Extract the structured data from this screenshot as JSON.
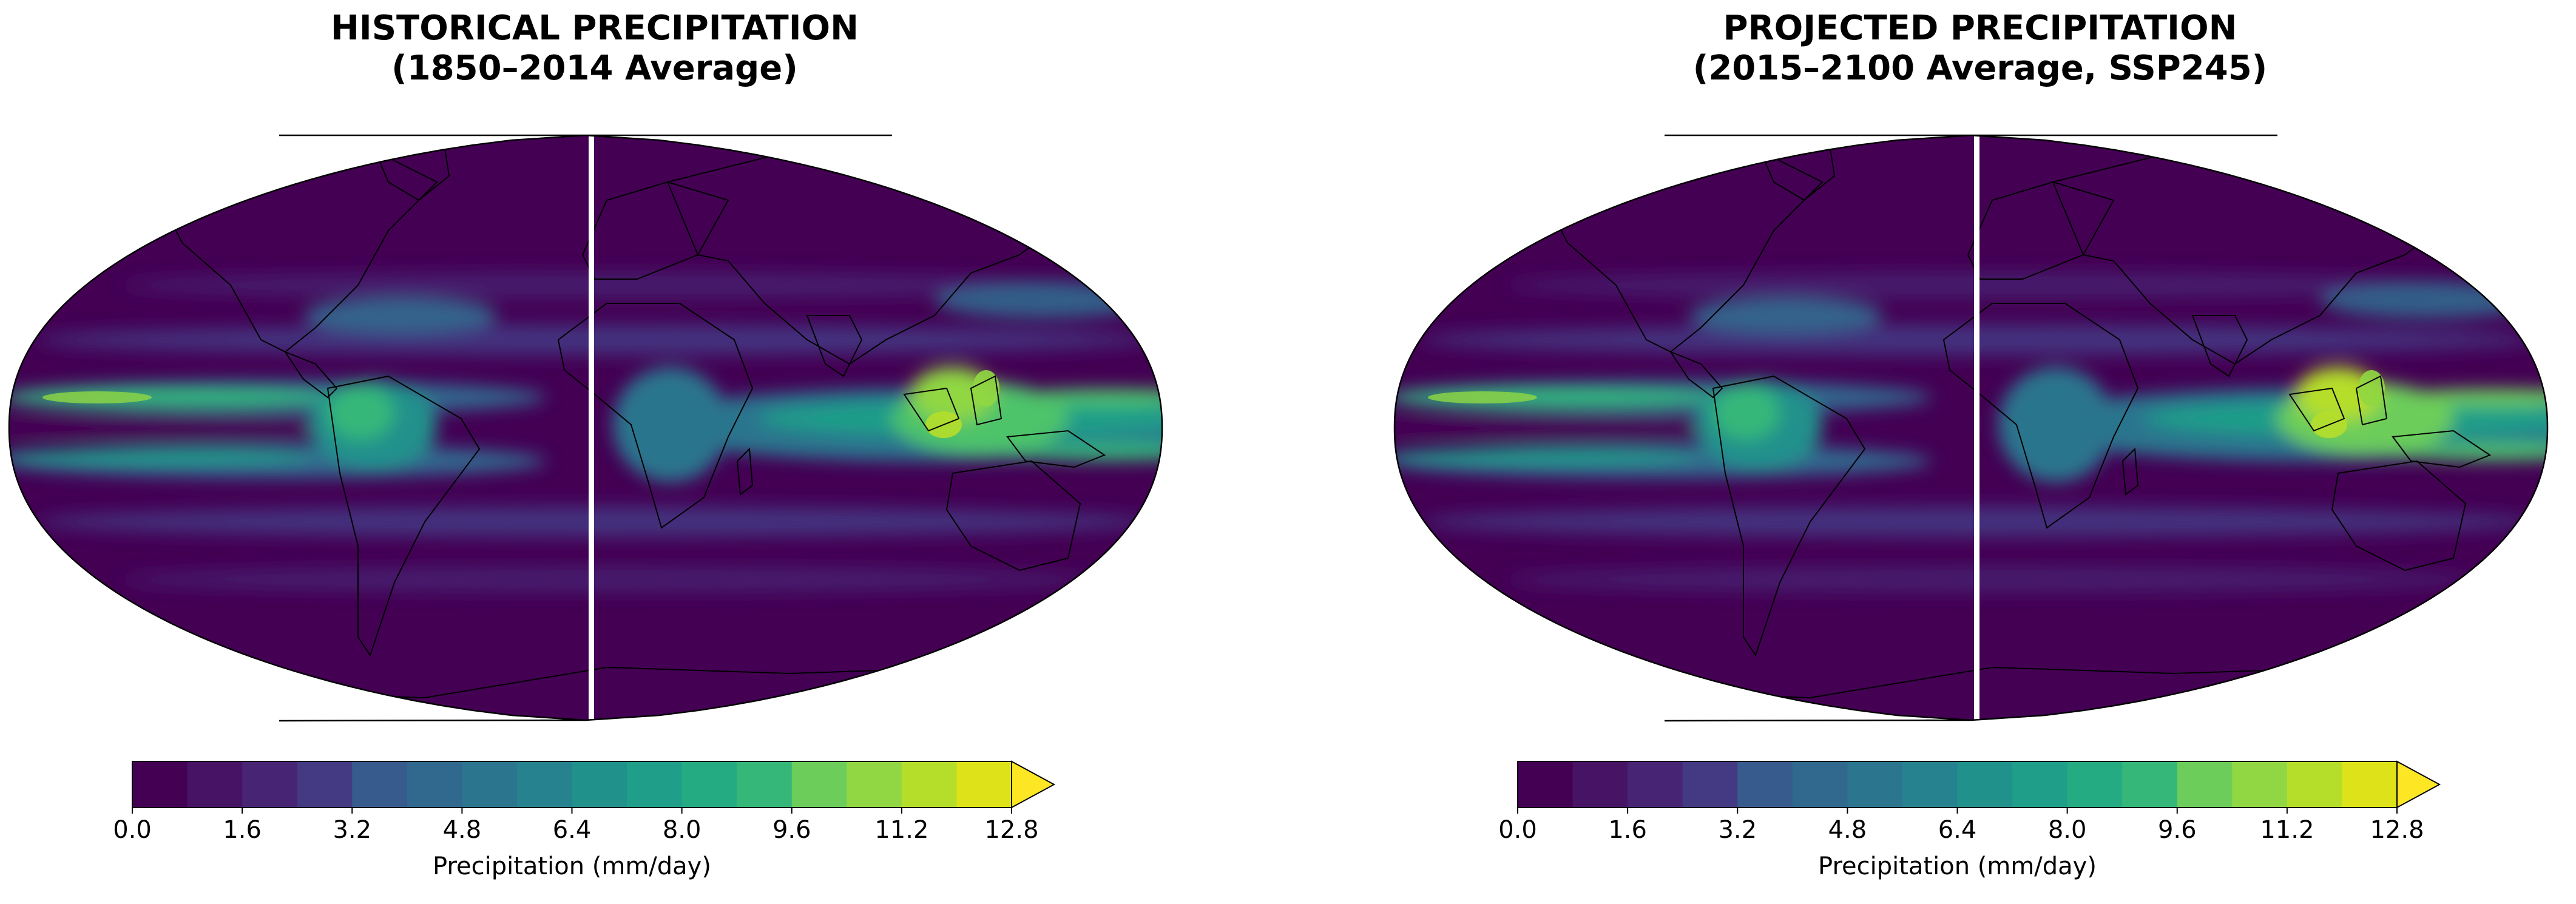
{
  "panels": [
    {
      "title_line1": "HISTORICAL PRECIPITATION",
      "title_line2": "(1850–2014 Average)"
    },
    {
      "title_line1": "PROJECTED PRECIPITATION",
      "title_line2": "(2015–2100 Average, SSP245)"
    }
  ],
  "colorbar": {
    "label": "Precipitation (mm/day)",
    "levels": [
      0.0,
      0.8,
      1.6,
      2.4,
      3.2,
      4.0,
      4.8,
      5.6,
      6.4,
      7.2,
      8.0,
      8.8,
      9.6,
      10.4,
      11.2,
      12.0,
      12.8
    ],
    "tick_labels": [
      "0.0",
      "1.6",
      "3.2",
      "4.8",
      "6.4",
      "8.0",
      "9.6",
      "11.2",
      "12.8"
    ],
    "extend": "max",
    "colors": [
      "#440154",
      "#471365",
      "#482475",
      "#443983",
      "#3e4c8a",
      "#375b8d",
      "#31688e",
      "#2b758e",
      "#26828e",
      "#21918c",
      "#1f9e89",
      "#25ab82",
      "#35b779",
      "#4ec36b",
      "#6ccd5a",
      "#90d743",
      "#b5de2b",
      "#dde318",
      "#fde725"
    ]
  },
  "colors": {
    "land_outline": "#000000",
    "map_background": "#440154",
    "seam": "#ffffff"
  }
}
